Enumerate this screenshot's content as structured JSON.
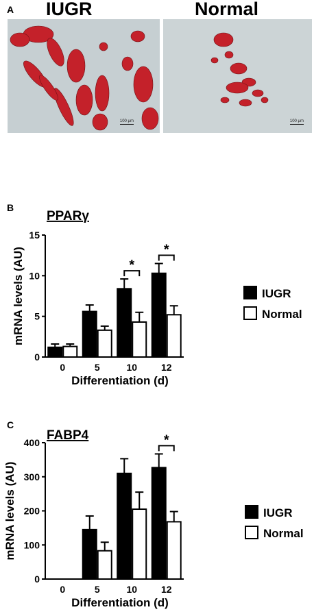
{
  "panel_a": {
    "letter": "A",
    "left_title": "IUGR",
    "right_title": "Normal",
    "left_scale": "100 μm",
    "right_scale": "100 μm"
  },
  "chart_data": [
    {
      "panel": "B",
      "type": "bar",
      "title": "PPARγ",
      "categories": [
        "0",
        "5",
        "10",
        "12"
      ],
      "xlabel": "Differentiation (d)",
      "ylabel": "mRNA levels (AU)",
      "ylim": [
        0,
        15
      ],
      "yticks": [
        "0",
        "5",
        "10",
        "15"
      ],
      "series": [
        {
          "name": "IUGR",
          "color": "#000000",
          "values": [
            1.2,
            5.6,
            8.4,
            10.3
          ],
          "errors": [
            0.4,
            0.8,
            1.2,
            1.2
          ]
        },
        {
          "name": "Normal",
          "color": "#ffffff",
          "values": [
            1.3,
            3.3,
            4.3,
            5.2
          ],
          "errors": [
            0.3,
            0.5,
            1.2,
            1.1
          ]
        }
      ],
      "significance": [
        {
          "category": 2,
          "label": "*"
        },
        {
          "category": 3,
          "label": "*"
        }
      ],
      "legend_position": "right"
    },
    {
      "panel": "C",
      "type": "bar",
      "title": "FABP4",
      "categories": [
        "0",
        "5",
        "10",
        "12"
      ],
      "xlabel": "Differentiation (d)",
      "ylabel": "mRNA levels (AU)",
      "ylim": [
        0,
        400
      ],
      "yticks": [
        "0",
        "100",
        "200",
        "300",
        "400"
      ],
      "series": [
        {
          "name": "IUGR",
          "color": "#000000",
          "values": [
            0,
            145,
            310,
            327
          ],
          "errors": [
            0,
            40,
            43,
            40
          ]
        },
        {
          "name": "Normal",
          "color": "#ffffff",
          "values": [
            0,
            83,
            205,
            168
          ],
          "errors": [
            0,
            25,
            50,
            30
          ]
        }
      ],
      "significance": [
        {
          "category": 3,
          "label": "*"
        }
      ],
      "legend_position": "right"
    }
  ]
}
